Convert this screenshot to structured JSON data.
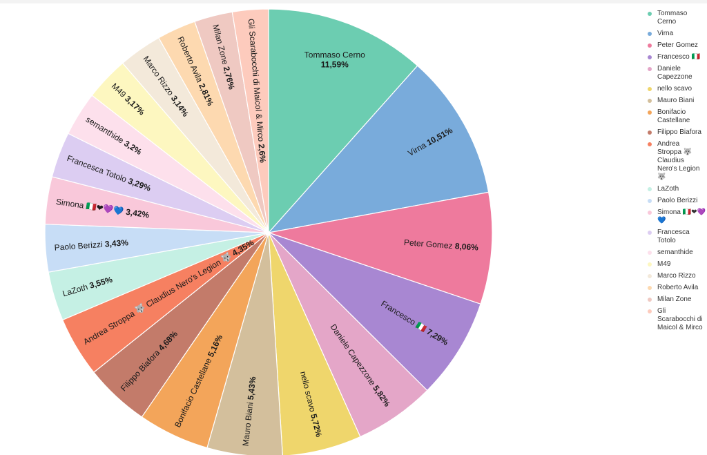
{
  "chart_data": {
    "type": "pie",
    "legend_position": "right",
    "start": "top",
    "direction": "clockwise",
    "slices": [
      {
        "label": "Tommaso Cerno",
        "legend": "Tommaso Cerno",
        "value": 11.59,
        "pct_text": "11,59%",
        "color": "#6ccdb1"
      },
      {
        "label": "Virna",
        "legend": "Virna",
        "value": 10.51,
        "pct_text": "10,51%",
        "color": "#79abdb"
      },
      {
        "label": "Peter Gomez",
        "legend": "Peter Gomez",
        "value": 8.06,
        "pct_text": "8,06%",
        "color": "#ee7a9d"
      },
      {
        "label": "Francesco 🇮🇹",
        "legend": "Francesco 🇮🇹",
        "value": 7.29,
        "pct_text": "7,29%",
        "color": "#a887d2"
      },
      {
        "label": "Daniele Capezzone",
        "legend": "Daniele Capezzone",
        "value": 5.82,
        "pct_text": "5,82%",
        "color": "#e4a6c8"
      },
      {
        "label": "nello scavo",
        "legend": "nello scavo",
        "value": 5.72,
        "pct_text": "5,72%",
        "color": "#efd66c"
      },
      {
        "label": "Mauro Biani",
        "legend": "Mauro Biani",
        "value": 5.43,
        "pct_text": "5,43%",
        "color": "#d3bf9c"
      },
      {
        "label": "Bonifacio Castellane",
        "legend": "Bonifacio Castellane",
        "value": 5.16,
        "pct_text": "5,16%",
        "color": "#f3a55a"
      },
      {
        "label": "Filippo Biafora",
        "legend": "Filippo Biafora",
        "value": 4.68,
        "pct_text": "4,68%",
        "color": "#c37b6a"
      },
      {
        "label": "Andrea Stroppa 🐺 Claudius Nero's Legion 🐺",
        "legend": "Andrea Stroppa 🐺 Claudius Nero's Legion 🐺",
        "value": 4.35,
        "pct_text": "4,35%",
        "color": "#f68061"
      },
      {
        "label": "LaZoth",
        "legend": "LaZoth",
        "value": 3.55,
        "pct_text": "3,55%",
        "color": "#c5f0e4"
      },
      {
        "label": "Paolo Berizzi",
        "legend": "Paolo Berizzi",
        "value": 3.43,
        "pct_text": "3,43%",
        "color": "#c7ddf6"
      },
      {
        "label": "Simona 🇮🇹❤💜💙",
        "legend": "Simona 🇮🇹❤💜💙",
        "value": 3.42,
        "pct_text": "3,42%",
        "color": "#f9c8da"
      },
      {
        "label": "Francesca Totolo",
        "legend": "Francesca Totolo",
        "value": 3.29,
        "pct_text": "3,29%",
        "color": "#dccdf2"
      },
      {
        "label": "semanthide",
        "legend": "semanthide",
        "value": 3.2,
        "pct_text": "3,2%",
        "color": "#fde0ec"
      },
      {
        "label": "M49",
        "legend": "M49",
        "value": 3.17,
        "pct_text": "3,17%",
        "color": "#fdf7c0"
      },
      {
        "label": "Marco Rizzo",
        "legend": "Marco Rizzo",
        "value": 3.14,
        "pct_text": "3,14%",
        "color": "#f3e9da"
      },
      {
        "label": "Roberto Avila",
        "legend": "Roberto Avila",
        "value": 2.81,
        "pct_text": "2,81%",
        "color": "#fdd9b0"
      },
      {
        "label": "Milan Zone",
        "legend": "Milan Zone",
        "value": 2.76,
        "pct_text": "2,76%",
        "color": "#efc9c2"
      },
      {
        "label": "Gli Scarabocchi di Maicol & Mirco",
        "legend": "Gli Scarabocchi di Maicol & Mirco",
        "value": 2.6,
        "pct_text": "2,6%",
        "color": "#fdcbbd"
      }
    ]
  }
}
